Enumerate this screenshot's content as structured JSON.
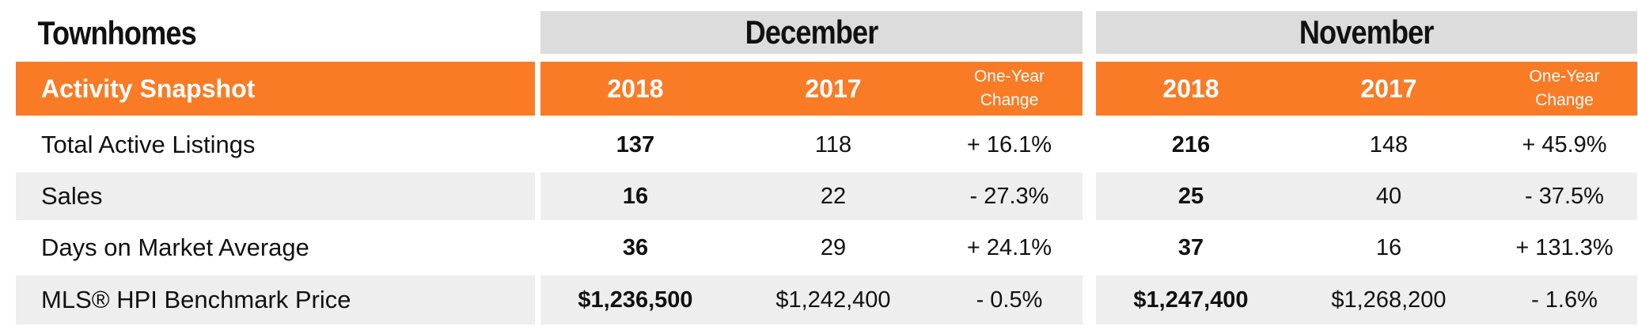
{
  "title": "Townhomes",
  "section_label": "Activity Snapshot",
  "groups": [
    {
      "month": "December",
      "columns": [
        "2018",
        "2017",
        "One-Year\nChange"
      ]
    },
    {
      "month": "November",
      "columns": [
        "2018",
        "2017",
        "One-Year\nChange"
      ]
    }
  ],
  "rows": [
    {
      "label": "Total Active Listings",
      "dec": [
        "137",
        "118",
        "+ 16.1%"
      ],
      "nov": [
        "216",
        "148",
        "+ 45.9%"
      ]
    },
    {
      "label": "Sales",
      "dec": [
        "16",
        "22",
        "- 27.3%"
      ],
      "nov": [
        "25",
        "40",
        "- 37.5%"
      ]
    },
    {
      "label": "Days on Market Average",
      "dec": [
        "36",
        "29",
        "+ 24.1%"
      ],
      "nov": [
        "37",
        "16",
        "+ 131.3%"
      ]
    },
    {
      "label": "MLS® HPI Benchmark Price",
      "dec": [
        "$1,236,500",
        "$1,242,400",
        "- 0.5%"
      ],
      "nov": [
        "$1,247,400",
        "$1,268,200",
        "- 1.6%"
      ]
    }
  ],
  "colors": {
    "accent": "#f97b25",
    "header_gray": "#dcdcdc",
    "row_gray": "#eeeeee"
  }
}
